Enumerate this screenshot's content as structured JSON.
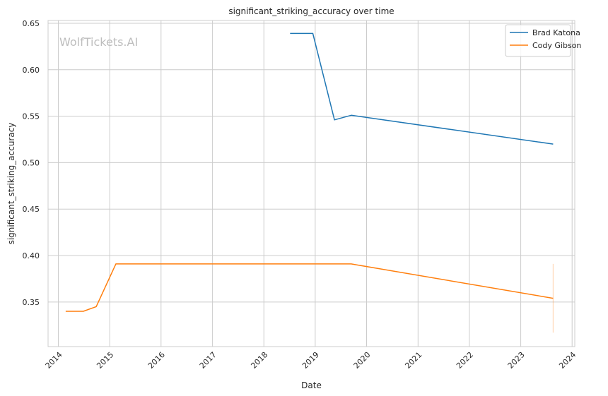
{
  "chart_data": {
    "type": "line",
    "title": "significant_striking_accuracy over time",
    "xlabel": "Date",
    "ylabel": "significant_striking_accuracy",
    "watermark": "WolfTickets.AI",
    "x_ticks": [
      "2014",
      "2015",
      "2016",
      "2017",
      "2018",
      "2019",
      "2020",
      "2021",
      "2022",
      "2023",
      "2024"
    ],
    "y_ticks": [
      "0.35",
      "0.40",
      "0.45",
      "0.50",
      "0.55",
      "0.60",
      "0.65"
    ],
    "xlim": [
      "2013-10-20",
      "2024-01-20"
    ],
    "ylim": [
      0.302,
      0.653
    ],
    "grid": true,
    "legend_position": "top-right",
    "series": [
      {
        "name": "Brad Katona",
        "color": "#1f77b4",
        "x": [
          "2018-07-06",
          "2018-12-15",
          "2019-05-18",
          "2019-09-14",
          "2023-08-19"
        ],
        "y": [
          0.639,
          0.639,
          0.546,
          0.551,
          0.52
        ]
      },
      {
        "name": "Cody Gibson",
        "color": "#ff7f0e",
        "x": [
          "2014-02-22",
          "2014-06-28",
          "2014-09-27",
          "2015-02-14",
          "2019-09-14",
          "2023-08-19"
        ],
        "y": [
          0.34,
          0.34,
          0.345,
          0.391,
          0.391,
          0.354
        ]
      }
    ],
    "error_band": {
      "x": "2023-08-19",
      "y_low": 0.317,
      "y_high": 0.391,
      "color": "#ff7f0e"
    }
  }
}
